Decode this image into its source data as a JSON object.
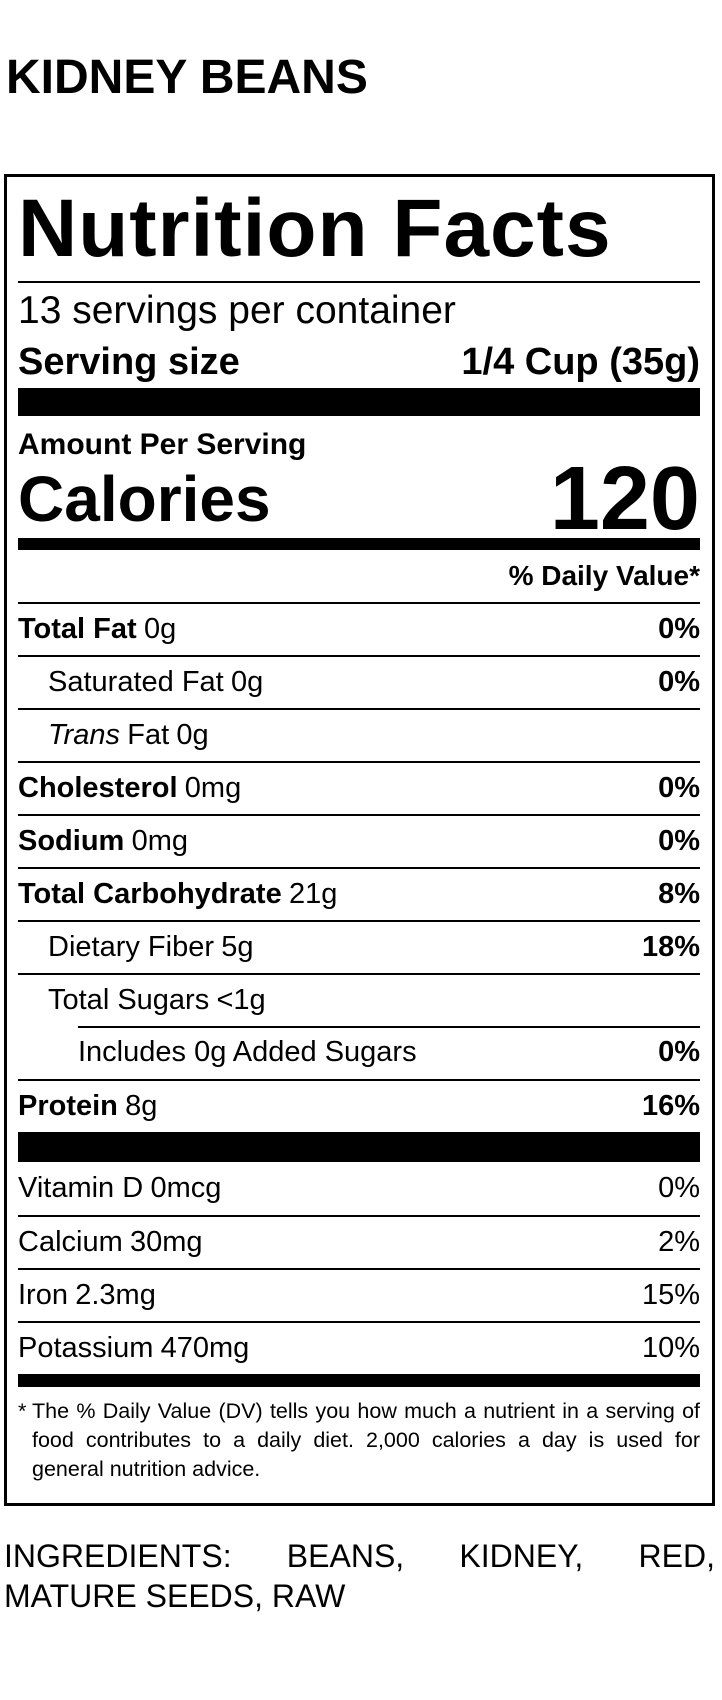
{
  "title": "KIDNEY BEANS",
  "label": {
    "heading": "Nutrition Facts",
    "servings": "13 servings per container",
    "serving_size": {
      "label": "Serving size",
      "value": "1/4 Cup (35g)"
    },
    "amount_per_serving": "Amount Per Serving",
    "calories": {
      "label": "Calories",
      "value": "120"
    },
    "daily_value_header": "% Daily Value*",
    "nutrients": [
      {
        "name": "Total Fat",
        "amount": "0g",
        "dv": "0%"
      },
      {
        "name": "Saturated Fat",
        "amount": "0g",
        "dv": "0%"
      },
      {
        "name_italic": "Trans",
        "name": "Fat",
        "amount": "0g"
      },
      {
        "name": "Cholesterol",
        "amount": "0mg",
        "dv": "0%"
      },
      {
        "name": "Sodium",
        "amount": "0mg",
        "dv": "0%"
      },
      {
        "name": "Total Carbohydrate",
        "amount": "21g",
        "dv": "8%"
      },
      {
        "name": "Dietary Fiber",
        "amount": "5g",
        "dv": "18%"
      },
      {
        "name": "Total Sugars",
        "amount": "<1g"
      },
      {
        "name": "Includes 0g Added Sugars",
        "dv": "0%"
      },
      {
        "name": "Protein",
        "amount": "8g",
        "dv": "16%"
      }
    ],
    "vitamins": [
      {
        "name": "Vitamin D",
        "amount": "0mcg",
        "dv": "0%"
      },
      {
        "name": "Calcium",
        "amount": "30mg",
        "dv": "2%"
      },
      {
        "name": "Iron",
        "amount": "2.3mg",
        "dv": "15%"
      },
      {
        "name": "Potassium",
        "amount": "470mg",
        "dv": "10%"
      }
    ],
    "footnote": {
      "marker": "*",
      "text": "The % Daily Value (DV) tells you how much a nutrient in a serving of food contributes to a daily diet. 2,000 calories a day is used for general nutrition advice."
    }
  },
  "ingredients": "INGREDIENTS: BEANS, KIDNEY, RED, MATURE SEEDS, RAW"
}
